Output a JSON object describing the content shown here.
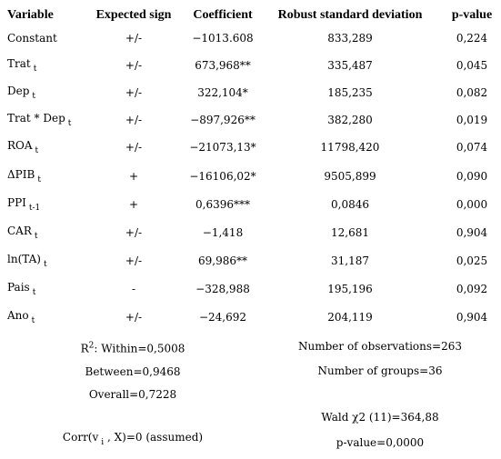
{
  "table": {
    "header": [
      "Variable",
      "Expected sign",
      "Coefficient",
      "Robust standard deviation",
      "p-value"
    ],
    "rows": [
      [
        {
          "name": "Constant"
        },
        "+/-",
        "−1013.608",
        "833,289",
        "0,224"
      ],
      [
        {
          "name": "Trat",
          "sub": "t"
        },
        "+/-",
        "673,968**",
        "335,487",
        "0,045"
      ],
      [
        {
          "name": "Dep",
          "sub": "t"
        },
        "+/-",
        "322,104*",
        "185,235",
        "0,082"
      ],
      [
        {
          "name": "Trat * Dep",
          "sub": "t"
        },
        "+/-",
        "−897,926**",
        "382,280",
        "0,019"
      ],
      [
        {
          "name": "ROA",
          "sub": "t"
        },
        "+/-",
        "−21073,13*",
        "11798,420",
        "0,074"
      ],
      [
        {
          "name": "ΔPIB",
          "sub": "t"
        },
        "+",
        "−16106,02*",
        "9505,899",
        "0,090"
      ],
      [
        {
          "name": "PPI",
          "sub": "t-1"
        },
        "+",
        "0,6396***",
        "0,0846",
        "0,000"
      ],
      [
        {
          "name": "CAR",
          "sub": "t"
        },
        "+/-",
        "−1,418",
        "12,681",
        "0,904"
      ],
      [
        {
          "name": "ln(TA)",
          "sub": "t"
        },
        "+/-",
        "69,986**",
        "31,187",
        "0,025"
      ],
      [
        {
          "name": "Pais",
          "sub": "t"
        },
        "-",
        "−328,988",
        "195,196",
        "0,092"
      ],
      [
        {
          "name": "Ano",
          "sub": "t"
        },
        "+/-",
        "−24,692",
        "204,119",
        "0,904"
      ]
    ]
  },
  "footer": {
    "left": [
      {
        "pre": "R",
        "sup": "2",
        "post": ": Within=0,5008"
      },
      {
        "post": "Between=0,9468"
      },
      {
        "post": "Overall=0,7228"
      },
      {
        "pre": "Corr(v",
        "sub": "i",
        "post": " , X)=0 (assumed)"
      }
    ],
    "right": [
      {
        "post": "Number of observations=263"
      },
      {
        "post": "Number of groups=36"
      },
      {
        "post": "Wald  χ2 (11)=364,88"
      },
      {
        "post": "p-value=0,0000"
      }
    ]
  }
}
